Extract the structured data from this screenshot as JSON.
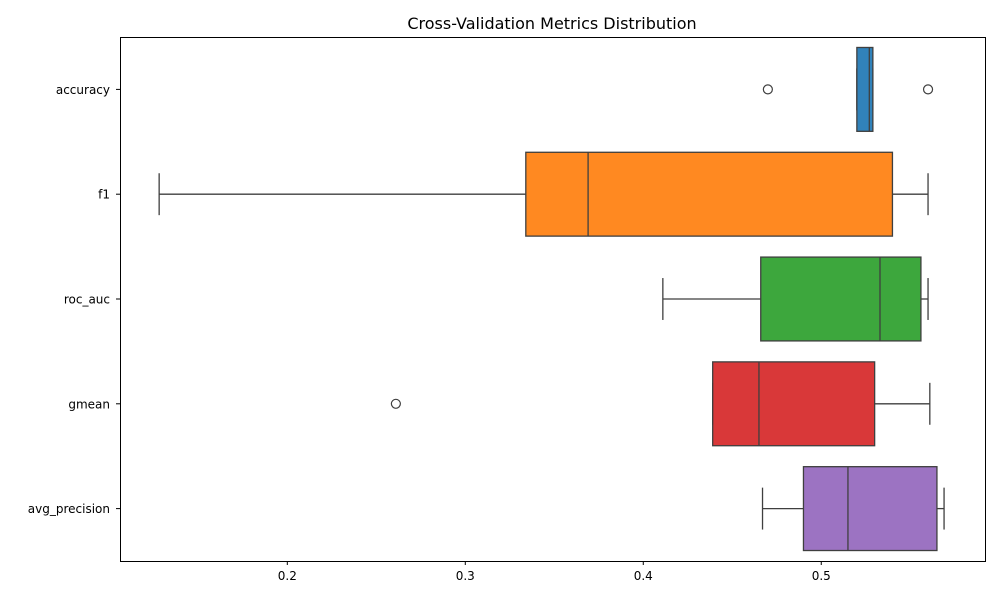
{
  "chart_data": {
    "type": "boxplot",
    "orientation": "horizontal",
    "title": "Cross-Validation Metrics Distribution",
    "xlabel": "",
    "ylabel": "",
    "xlim": [
      0.106,
      0.592
    ],
    "xticks": [
      0.2,
      0.3,
      0.4,
      0.5
    ],
    "xtick_labels": [
      "0.2",
      "0.3",
      "0.4",
      "0.5"
    ],
    "grid": false,
    "legend": "none",
    "series": [
      {
        "category": "accuracy",
        "color": "#1f77b4",
        "whisker_low": 0.52,
        "q1": 0.52,
        "median": 0.527,
        "q3": 0.529,
        "whisker_high": 0.529,
        "outliers": [
          0.47,
          0.56
        ]
      },
      {
        "category": "f1",
        "color": "#ff7f0e",
        "whisker_low": 0.128,
        "q1": 0.334,
        "median": 0.369,
        "q3": 0.54,
        "whisker_high": 0.56,
        "outliers": []
      },
      {
        "category": "roc_auc",
        "color": "#2ca02c",
        "whisker_low": 0.411,
        "q1": 0.466,
        "median": 0.533,
        "q3": 0.556,
        "whisker_high": 0.56,
        "outliers": []
      },
      {
        "category": "gmean",
        "color": "#d62728",
        "whisker_low": 0.439,
        "q1": 0.439,
        "median": 0.465,
        "q3": 0.53,
        "whisker_high": 0.561,
        "outliers": [
          0.261
        ]
      },
      {
        "category": "avg_precision",
        "color": "#9467bd",
        "whisker_low": 0.467,
        "q1": 0.49,
        "median": 0.515,
        "q3": 0.565,
        "whisker_high": 0.569,
        "outliers": []
      }
    ]
  }
}
